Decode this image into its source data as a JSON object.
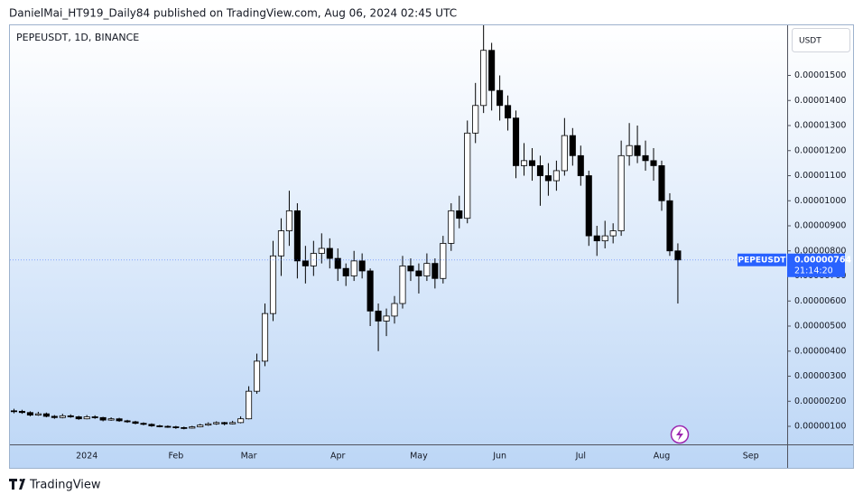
{
  "header": {
    "attribution": "DanielMai_HT919_Daily84 published on TradingView.com, Aug 06, 2024 02:45 UTC",
    "footer": "TradingView"
  },
  "chart_data": {
    "type": "candlestick",
    "title": "PEPEUSDT, 1D, BINANCE",
    "currency": "USDT",
    "up_color": "#ffffff",
    "down_color": "#000000",
    "wick_color": "#000000",
    "categories": [
      null,
      null,
      null,
      null,
      null,
      null,
      null,
      null,
      null,
      "2024",
      null,
      null,
      null,
      null,
      null,
      null,
      null,
      null,
      null,
      null,
      "Feb",
      null,
      null,
      null,
      null,
      null,
      null,
      null,
      null,
      "Mar",
      null,
      null,
      null,
      null,
      null,
      null,
      null,
      null,
      null,
      null,
      "Apr",
      null,
      null,
      null,
      null,
      null,
      null,
      null,
      null,
      null,
      "May",
      null,
      null,
      null,
      null,
      null,
      null,
      null,
      null,
      null,
      "Jun",
      null,
      null,
      null,
      null,
      null,
      null,
      null,
      null,
      null,
      "Jul",
      null,
      null,
      null,
      null,
      null,
      null,
      null,
      null,
      null,
      "Aug",
      null,
      null,
      null,
      null,
      null,
      null,
      null,
      null,
      null,
      null,
      "Sep",
      null,
      null,
      null,
      null
    ],
    "open": [
      1.62e-06,
      1.6e-06,
      1.55e-06,
      1.45e-06,
      1.5e-06,
      1.4e-06,
      1.35e-06,
      1.42e-06,
      1.38e-06,
      1.3e-06,
      1.38e-06,
      1.35e-06,
      1.25e-06,
      1.3e-06,
      1.22e-06,
      1.18e-06,
      1.12e-06,
      1.08e-06,
      1.02e-06,
      1e-06,
      9.8e-07,
      9.5e-07,
      9.3e-07,
      9.8e-07,
      1.05e-06,
      1.1e-06,
      1.15e-06,
      1.1e-06,
      1.15e-06,
      1.3e-06,
      2.4e-06,
      3.6e-06,
      5.5e-06,
      7.8e-06,
      8.8e-06,
      9.6e-06,
      7.6e-06,
      7.4e-06,
      7.9e-06,
      8.1e-06,
      7.7e-06,
      7.3e-06,
      7e-06,
      7.6e-06,
      7.2e-06,
      5.6e-06,
      5.2e-06,
      5.4e-06,
      5.9e-06,
      7.4e-06,
      7.2e-06,
      7e-06,
      7.5e-06,
      6.9e-06,
      8.3e-06,
      9.6e-06,
      9.3e-06,
      1.27e-05,
      1.38e-05,
      1.6e-05,
      1.44e-05,
      1.38e-05,
      1.33e-05,
      1.14e-05,
      1.16e-05,
      1.14e-05,
      1.1e-05,
      1.08e-05,
      1.12e-05,
      1.26e-05,
      1.18e-05,
      1.1e-05,
      8.6e-06,
      8.4e-06,
      8.6e-06,
      8.8e-06,
      1.18e-05,
      1.22e-05,
      1.18e-05,
      1.16e-05,
      1.14e-05,
      1e-05,
      8e-06,
      null,
      null,
      null,
      null,
      null,
      null,
      null,
      null,
      null,
      null,
      null,
      null,
      null
    ],
    "high": [
      1.7e-06,
      1.66e-06,
      1.6e-06,
      1.58e-06,
      1.55e-06,
      1.45e-06,
      1.5e-06,
      1.48e-06,
      1.42e-06,
      1.45e-06,
      1.44e-06,
      1.38e-06,
      1.36e-06,
      1.34e-06,
      1.26e-06,
      1.22e-06,
      1.16e-06,
      1.12e-06,
      1.06e-06,
      1.04e-06,
      1.02e-06,
      9.9e-07,
      1.02e-06,
      1.1e-06,
      1.16e-06,
      1.2e-06,
      1.18e-06,
      1.22e-06,
      1.4e-06,
      2.6e-06,
      3.9e-06,
      5.9e-06,
      8.4e-06,
      9.3e-06,
      1.04e-05,
      9.9e-06,
      8.2e-06,
      8.4e-06,
      8.7e-06,
      8.5e-06,
      8.1e-06,
      7.5e-06,
      8e-06,
      7.9e-06,
      7.3e-06,
      5.9e-06,
      5.7e-06,
      6.2e-06,
      7.8e-06,
      7.7e-06,
      7.5e-06,
      7.9e-06,
      7.7e-06,
      8.6e-06,
      9.9e-06,
      1.02e-05,
      1.32e-05,
      1.47e-05,
      1.7e-05,
      1.63e-05,
      1.5e-05,
      1.42e-05,
      1.36e-05,
      1.23e-05,
      1.21e-05,
      1.18e-05,
      1.15e-05,
      1.16e-05,
      1.33e-05,
      1.29e-05,
      1.22e-05,
      1.12e-05,
      9e-06,
      9.2e-06,
      9.1e-06,
      1.24e-05,
      1.31e-05,
      1.3e-05,
      1.24e-05,
      1.21e-05,
      1.16e-05,
      1.03e-05,
      8.3e-06,
      null,
      null,
      null,
      null,
      null,
      null,
      null,
      null,
      null,
      null,
      null,
      null,
      null
    ],
    "low": [
      1.52e-06,
      1.5e-06,
      1.4e-06,
      1.42e-06,
      1.36e-06,
      1.3e-06,
      1.32e-06,
      1.34e-06,
      1.26e-06,
      1.28e-06,
      1.3e-06,
      1.2e-06,
      1.22e-06,
      1.18e-06,
      1.14e-06,
      1.08e-06,
      1.04e-06,
      9.8e-07,
      9.6e-07,
      9.4e-07,
      9e-07,
      8.8e-07,
      9.1e-07,
      9.6e-07,
      1.02e-06,
      1.06e-06,
      1.04e-06,
      1.08e-06,
      1.12e-06,
      1.28e-06,
      2.3e-06,
      3.4e-06,
      5.2e-06,
      7e-06,
      8.2e-06,
      6.9e-06,
      6.7e-06,
      7e-06,
      7.5e-06,
      7.3e-06,
      6.8e-06,
      6.6e-06,
      6.8e-06,
      6.9e-06,
      5e-06,
      4e-06,
      4.6e-06,
      5.1e-06,
      5.7e-06,
      6.8e-06,
      6.3e-06,
      6.8e-06,
      6.5e-06,
      6.7e-06,
      8e-06,
      8.9e-06,
      9.1e-06,
      1.23e-05,
      1.35e-05,
      1.36e-05,
      1.32e-05,
      1.28e-05,
      1.09e-05,
      1.1e-05,
      1.08e-05,
      9.8e-06,
      1.02e-05,
      1.04e-05,
      1.1e-05,
      1.14e-05,
      1.06e-05,
      8.2e-06,
      7.8e-06,
      8.1e-06,
      8.3e-06,
      8.6e-06,
      1.14e-05,
      1.15e-05,
      1.12e-05,
      1.08e-05,
      9.6e-06,
      7.8e-06,
      5.9e-06,
      null,
      null,
      null,
      null,
      null,
      null,
      null,
      null,
      null,
      null,
      null,
      null,
      null
    ],
    "close": [
      1.6e-06,
      1.55e-06,
      1.45e-06,
      1.5e-06,
      1.4e-06,
      1.35e-06,
      1.42e-06,
      1.38e-06,
      1.3e-06,
      1.38e-06,
      1.35e-06,
      1.25e-06,
      1.3e-06,
      1.22e-06,
      1.18e-06,
      1.12e-06,
      1.08e-06,
      1.02e-06,
      1e-06,
      9.8e-07,
      9.5e-07,
      9.3e-07,
      9.8e-07,
      1.05e-06,
      1.1e-06,
      1.15e-06,
      1.1e-06,
      1.15e-06,
      1.3e-06,
      2.4e-06,
      3.6e-06,
      5.5e-06,
      7.8e-06,
      8.8e-06,
      9.6e-06,
      7.6e-06,
      7.4e-06,
      7.9e-06,
      8.1e-06,
      7.7e-06,
      7.3e-06,
      7e-06,
      7.6e-06,
      7.2e-06,
      5.6e-06,
      5.2e-06,
      5.4e-06,
      5.9e-06,
      7.4e-06,
      7.2e-06,
      7e-06,
      7.5e-06,
      6.9e-06,
      8.3e-06,
      9.6e-06,
      9.3e-06,
      1.27e-05,
      1.38e-05,
      1.6e-05,
      1.44e-05,
      1.38e-05,
      1.33e-05,
      1.14e-05,
      1.16e-05,
      1.14e-05,
      1.1e-05,
      1.08e-05,
      1.12e-05,
      1.26e-05,
      1.18e-05,
      1.1e-05,
      8.6e-06,
      8.4e-06,
      8.6e-06,
      8.8e-06,
      1.18e-05,
      1.22e-05,
      1.18e-05,
      1.16e-05,
      1.14e-05,
      1e-05,
      8e-06,
      7.64e-06,
      null,
      null,
      null,
      null,
      null,
      null,
      null,
      null,
      null,
      null,
      null,
      null,
      null
    ],
    "ylim": [
      2.8e-07,
      1.7e-05
    ],
    "yticks": [
      {
        "value": 1e-06,
        "label": "0.00000100"
      },
      {
        "value": 2e-06,
        "label": "0.00000200"
      },
      {
        "value": 3e-06,
        "label": "0.00000300"
      },
      {
        "value": 4e-06,
        "label": "0.00000400"
      },
      {
        "value": 5e-06,
        "label": "0.00000500"
      },
      {
        "value": 6e-06,
        "label": "0.00000600"
      },
      {
        "value": 7e-06,
        "label": "0.00000700"
      },
      {
        "value": 8e-06,
        "label": "0.00000800"
      },
      {
        "value": 9e-06,
        "label": "0.00000900"
      },
      {
        "value": 1e-05,
        "label": "0.00001000"
      },
      {
        "value": 1.1e-05,
        "label": "0.00001100"
      },
      {
        "value": 1.2e-05,
        "label": "0.00001200"
      },
      {
        "value": 1.3e-05,
        "label": "0.00001300"
      },
      {
        "value": 1.4e-05,
        "label": "0.00001400"
      },
      {
        "value": 1.5e-05,
        "label": "0.00001500"
      }
    ],
    "last_label": {
      "symbol": "PEPEUSDT",
      "price": {
        "value": 7.64e-06,
        "label": "0.00000764"
      },
      "countdown": "21:14:20",
      "color": "#2962ff"
    }
  }
}
